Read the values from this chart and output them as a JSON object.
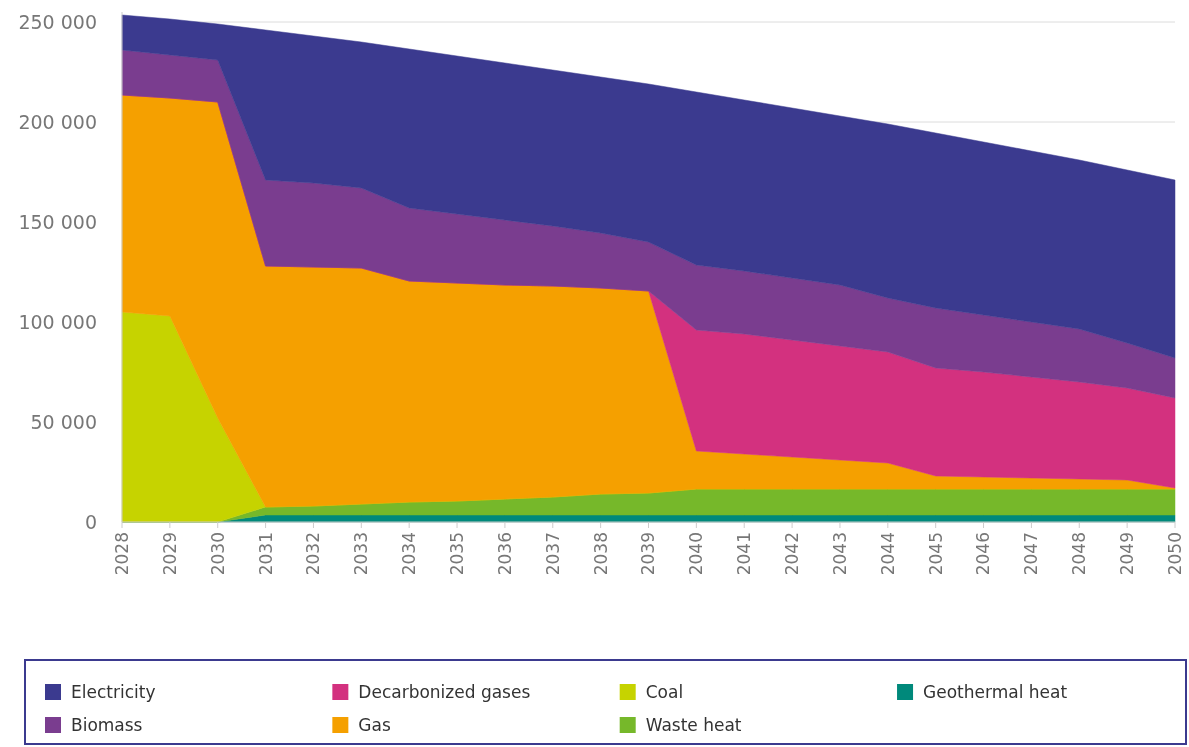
{
  "chart_data": {
    "type": "area",
    "stacked": true,
    "categories": [
      "2028",
      "2029",
      "2030",
      "2031",
      "2032",
      "2033",
      "2034",
      "2035",
      "2036",
      "2037",
      "2038",
      "2039",
      "2040",
      "2041",
      "2042",
      "2043",
      "2044",
      "2045",
      "2046",
      "2047",
      "2048",
      "2049",
      "2050"
    ],
    "series": [
      {
        "name": "Geothermal heat",
        "color": "#00897b",
        "values": [
          0,
          0,
          0,
          3500,
          3500,
          3500,
          3500,
          3500,
          3500,
          3500,
          3500,
          3500,
          3500,
          3500,
          3500,
          3500,
          3500,
          3500,
          3500,
          3500,
          3500,
          3500,
          3500
        ]
      },
      {
        "name": "Waste heat",
        "color": "#76b82a",
        "values": [
          0,
          0,
          0,
          4000,
          4500,
          5500,
          6500,
          7000,
          8000,
          9000,
          10500,
          11000,
          13000,
          13000,
          13000,
          13000,
          13000,
          13000,
          13000,
          13000,
          13000,
          13000,
          13000
        ]
      },
      {
        "name": "Coal",
        "color": "#c6d300",
        "values": [
          105000,
          103000,
          52000,
          0,
          0,
          0,
          0,
          0,
          0,
          0,
          0,
          0,
          0,
          0,
          0,
          0,
          0,
          0,
          0,
          0,
          0,
          0,
          0
        ]
      },
      {
        "name": "Gas",
        "color": "#f5a000",
        "values": [
          108500,
          109000,
          158000,
          120500,
          119500,
          118000,
          110500,
          109000,
          107000,
          105500,
          103000,
          101000,
          19000,
          17500,
          16000,
          14500,
          13000,
          6500,
          6000,
          5500,
          5000,
          4500,
          500
        ]
      },
      {
        "name": "Decarbonized gases",
        "color": "#d3317f",
        "values": [
          0,
          0,
          0,
          0,
          0,
          0,
          0,
          0,
          0,
          0,
          0,
          0,
          60500,
          60000,
          58500,
          57000,
          55500,
          54000,
          52500,
          50500,
          48500,
          46000,
          45000
        ]
      },
      {
        "name": "Biomass",
        "color": "#7a3d8f",
        "values": [
          22500,
          21500,
          21000,
          43000,
          42000,
          40000,
          36500,
          34500,
          32500,
          30000,
          27500,
          24500,
          32500,
          31500,
          31000,
          30500,
          27000,
          30000,
          28500,
          27500,
          26500,
          22500,
          20000
        ]
      },
      {
        "name": "Electricity",
        "color": "#3b3a8f",
        "values": [
          17500,
          18000,
          18000,
          75000,
          73500,
          73000,
          79500,
          79000,
          78500,
          78000,
          78000,
          79000,
          86500,
          85500,
          85000,
          84500,
          87000,
          87500,
          86500,
          85500,
          84500,
          86500,
          89000
        ]
      }
    ],
    "ylim": [
      0,
      255000
    ],
    "yticks": [
      {
        "value": 0,
        "label": "0"
      },
      {
        "value": 50000,
        "label": "50 000"
      },
      {
        "value": 100000,
        "label": "100 000"
      },
      {
        "value": 150000,
        "label": "150 000"
      },
      {
        "value": 200000,
        "label": "200 000"
      },
      {
        "value": 250000,
        "label": "250 000"
      }
    ],
    "grid": "y",
    "legend": "bottom"
  }
}
